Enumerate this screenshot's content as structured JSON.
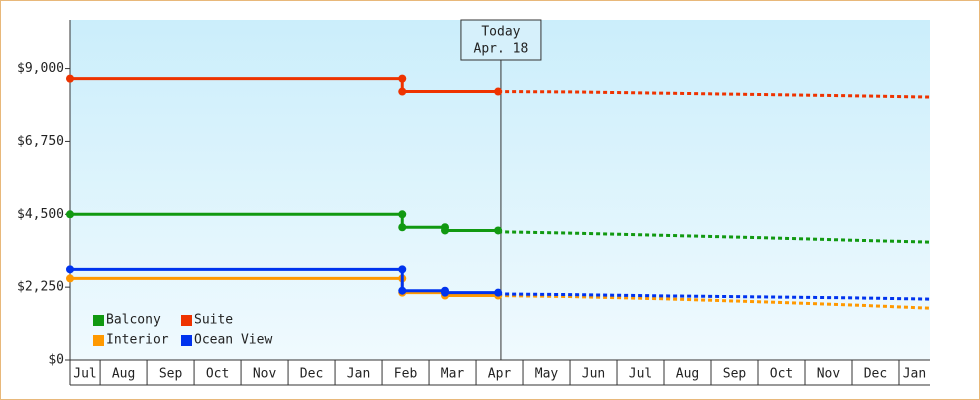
{
  "chart_data": {
    "type": "line",
    "xlim": [
      0.36,
      18.66
    ],
    "xticks": [
      {
        "value": 0,
        "label": "Jul"
      },
      {
        "value": 1,
        "label": "Aug"
      },
      {
        "value": 2,
        "label": "Sep"
      },
      {
        "value": 3,
        "label": "Oct"
      },
      {
        "value": 4,
        "label": "Nov"
      },
      {
        "value": 5,
        "label": "Dec"
      },
      {
        "value": 6,
        "label": "Jan"
      },
      {
        "value": 7,
        "label": "Feb"
      },
      {
        "value": 8,
        "label": "Mar"
      },
      {
        "value": 9,
        "label": "Apr"
      },
      {
        "value": 10,
        "label": "May"
      },
      {
        "value": 11,
        "label": "Jun"
      },
      {
        "value": 12,
        "label": "Jul"
      },
      {
        "value": 13,
        "label": "Aug"
      },
      {
        "value": 14,
        "label": "Sep"
      },
      {
        "value": 15,
        "label": "Oct"
      },
      {
        "value": 16,
        "label": "Nov"
      },
      {
        "value": 17,
        "label": "Dec"
      },
      {
        "value": 18,
        "label": "Jan"
      }
    ],
    "ylim": [
      0,
      10500
    ],
    "yticks": [
      {
        "value": 0,
        "label": "$0"
      },
      {
        "value": 2250,
        "label": "$2,250"
      },
      {
        "value": 4500,
        "label": "$4,500"
      },
      {
        "value": 6750,
        "label": "$6,750"
      },
      {
        "value": 9000,
        "label": "$9,000"
      }
    ],
    "annotation": {
      "text": [
        "Today",
        "Apr. 18"
      ],
      "x": 9.53
    },
    "series": [
      {
        "name": "Balcony",
        "color": "#119911",
        "x": [
          0.36,
          7.43,
          7.43,
          8.34,
          8.34,
          9.47
        ],
        "values": [
          4500,
          4500,
          4100,
          4100,
          4000,
          4000
        ],
        "forecast": {
          "x": [
            9.47,
            11,
            13,
            15,
            17,
            18.66
          ],
          "values": [
            3960,
            3920,
            3850,
            3780,
            3700,
            3640
          ]
        }
      },
      {
        "name": "Suite",
        "color": "#ee3300",
        "x": [
          0.36,
          7.43,
          7.43,
          9.47
        ],
        "values": [
          8690,
          8690,
          8290,
          8290
        ],
        "forecast": {
          "x": [
            9.47,
            11,
            13,
            15,
            17,
            18.66
          ],
          "values": [
            8290,
            8280,
            8240,
            8200,
            8160,
            8120
          ]
        }
      },
      {
        "name": "Interior",
        "color": "#ff9900",
        "x": [
          0.36,
          7.43,
          7.43,
          8.34,
          8.34,
          9.47
        ],
        "values": [
          2520,
          2520,
          2080,
          2080,
          1990,
          1990
        ],
        "forecast": {
          "x": [
            9.47,
            11,
            13,
            15,
            17,
            18.66
          ],
          "values": [
            1990,
            1960,
            1890,
            1800,
            1700,
            1600
          ]
        }
      },
      {
        "name": "Ocean View",
        "color": "#0033ee",
        "x": [
          0.36,
          7.43,
          7.43,
          8.34,
          8.34,
          9.47
        ],
        "values": [
          2800,
          2800,
          2140,
          2140,
          2080,
          2080
        ],
        "forecast": {
          "x": [
            9.47,
            11,
            13,
            15,
            17,
            18.66
          ],
          "values": [
            2040,
            2020,
            1980,
            1950,
            1920,
            1880
          ]
        }
      }
    ]
  }
}
